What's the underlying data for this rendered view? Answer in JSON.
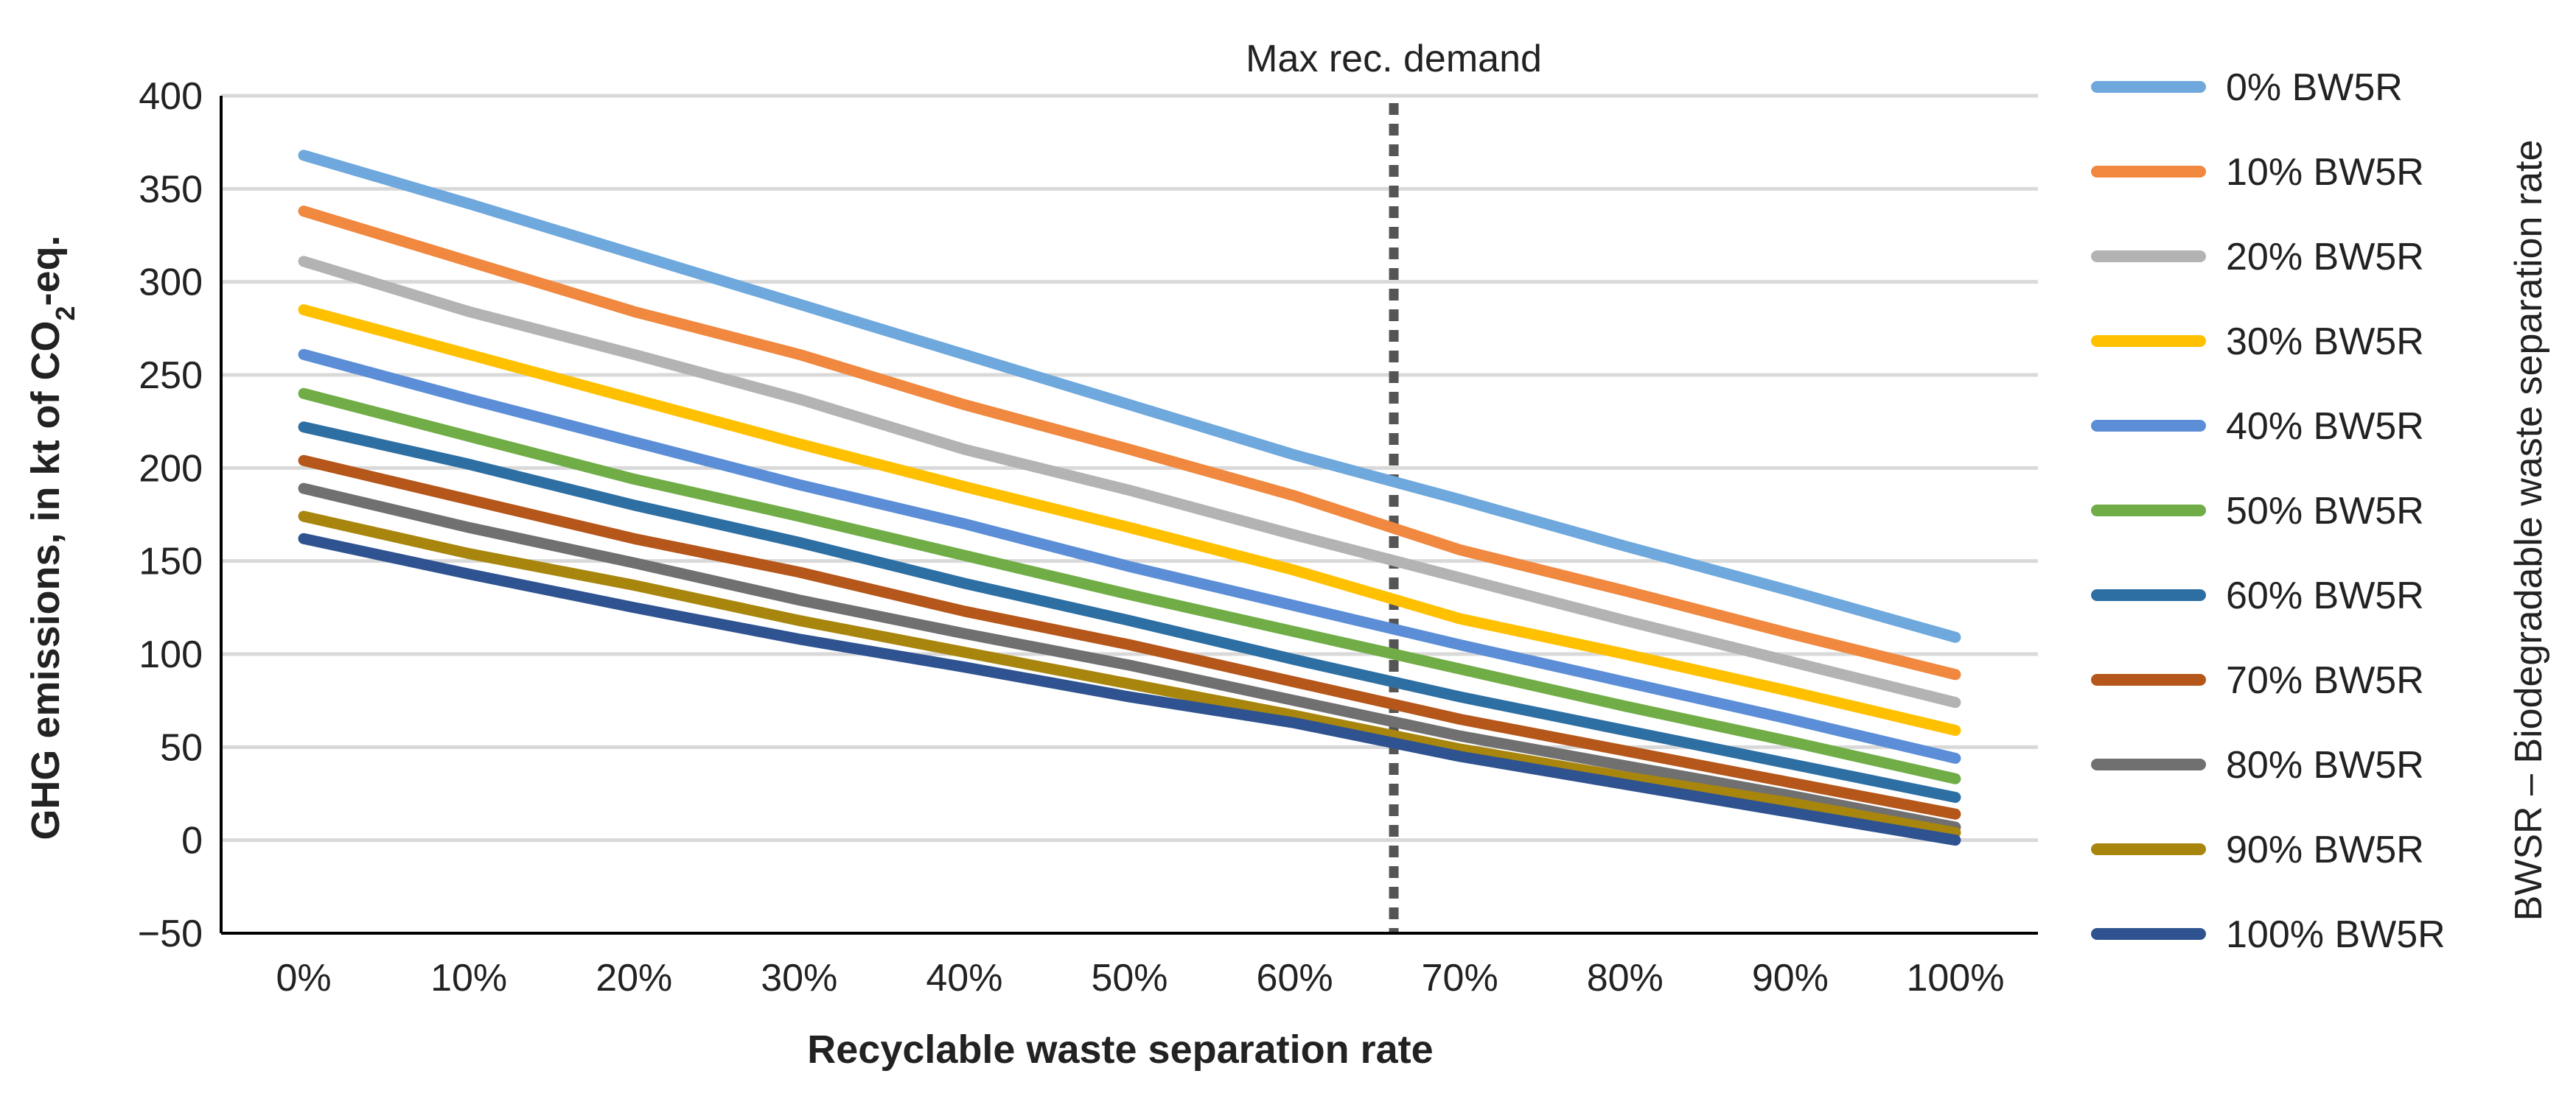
{
  "chart_data": {
    "type": "line",
    "title": "",
    "xlabel": "Recyclable waste separation rate",
    "ylabel_parts": [
      "GHG emissions, in kt of CO",
      "2",
      "-eq."
    ],
    "legend_title": "BWSR – Biodegradable waste separation rate",
    "x": [
      0,
      10,
      20,
      30,
      40,
      50,
      60,
      70,
      80,
      90,
      100
    ],
    "x_tick_labels": [
      "0%",
      "10%",
      "20%",
      "30%",
      "40%",
      "50%",
      "60%",
      "70%",
      "80%",
      "90%",
      "100%"
    ],
    "y_ticks": [
      -50,
      0,
      50,
      100,
      150,
      200,
      250,
      300,
      350,
      400
    ],
    "y_tick_labels": [
      "−50",
      "0",
      "50",
      "100",
      "150",
      "200",
      "250",
      "300",
      "350",
      "400"
    ],
    "xlim": [
      -5,
      105
    ],
    "ylim": [
      -50,
      400
    ],
    "grid": true,
    "legend_position": "right",
    "annotation": {
      "label": "Max rec. demand",
      "x": 66
    },
    "series": [
      {
        "name": "0% BW5R",
        "color": "#6FA8DC",
        "values": [
          368,
          342,
          315,
          288,
          261,
          234,
          207,
          183,
          158,
          134,
          109
        ]
      },
      {
        "name": "10% BW5R",
        "color": "#F0883F",
        "values": [
          338,
          311,
          284,
          261,
          234,
          210,
          185,
          156,
          134,
          111,
          89
        ]
      },
      {
        "name": "20% BW5R",
        "color": "#B3B3B3",
        "values": [
          311,
          284,
          261,
          237,
          210,
          188,
          164,
          141,
          118,
          96,
          74
        ]
      },
      {
        "name": "30% BW5R",
        "color": "#FFC000",
        "values": [
          285,
          261,
          237,
          213,
          190,
          168,
          145,
          119,
          100,
          80,
          59
        ]
      },
      {
        "name": "40% BW5R",
        "color": "#5B8ED6",
        "values": [
          261,
          237,
          214,
          191,
          170,
          147,
          126,
          105,
          85,
          65,
          44
        ]
      },
      {
        "name": "50% BW5R",
        "color": "#70AD47",
        "values": [
          240,
          217,
          194,
          174,
          153,
          132,
          112,
          92,
          72,
          53,
          33
        ]
      },
      {
        "name": "60% BW5R",
        "color": "#2E6FA3",
        "values": [
          222,
          202,
          180,
          160,
          138,
          118,
          97,
          77,
          59,
          41,
          23
        ]
      },
      {
        "name": "70% BW5R",
        "color": "#B5561A",
        "values": [
          204,
          183,
          162,
          144,
          123,
          105,
          85,
          65,
          48,
          31,
          14
        ]
      },
      {
        "name": "80% BW5R",
        "color": "#707070",
        "values": [
          189,
          168,
          149,
          129,
          111,
          94,
          75,
          56,
          40,
          24,
          7
        ]
      },
      {
        "name": "90% BW5R",
        "color": "#A8860D",
        "values": [
          174,
          154,
          137,
          118,
          101,
          84,
          67,
          49,
          34,
          20,
          4
        ]
      },
      {
        "name": "100% BW5R",
        "color": "#2F5390",
        "values": [
          162,
          143,
          125,
          108,
          93,
          77,
          63,
          45,
          30,
          15,
          0
        ]
      }
    ]
  }
}
